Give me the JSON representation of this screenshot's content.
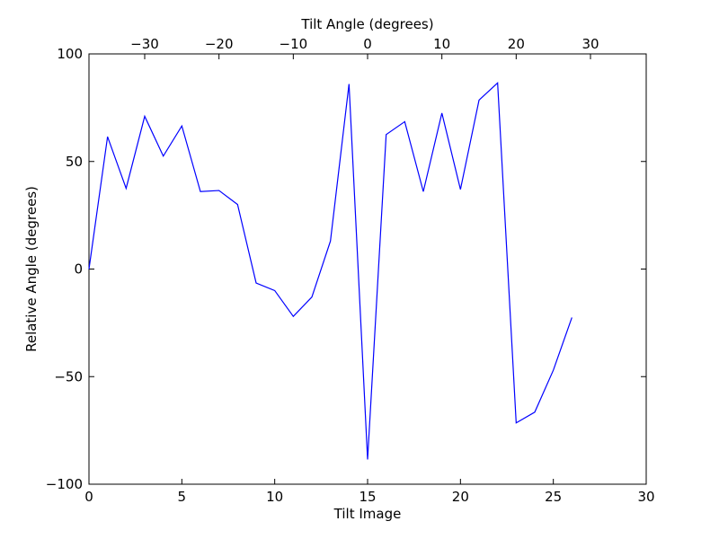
{
  "chart_data": {
    "type": "line",
    "xlabel": "Tilt Image",
    "ylabel": "Relative Angle (degrees)",
    "top_xlabel": "Tilt Angle (degrees)",
    "xlim": [
      0,
      30
    ],
    "ylim": [
      -100,
      100
    ],
    "grid": false,
    "x_ticks": [
      0,
      5,
      10,
      15,
      20,
      25,
      30
    ],
    "x_tick_labels": [
      "0",
      "5",
      "10",
      "15",
      "20",
      "25",
      "30"
    ],
    "y_ticks": [
      -100,
      -50,
      0,
      50,
      100
    ],
    "y_tick_labels": [
      "−100",
      "−50",
      "0",
      "50",
      "100"
    ],
    "top_ticks": [
      -30,
      -20,
      -10,
      0,
      10,
      20,
      30
    ],
    "top_tick_labels": [
      "−30",
      "−20",
      "−10",
      "0",
      "10",
      "20",
      "30"
    ],
    "top_axis_map": {
      "tilt_image_at_zero_degrees": 15,
      "degrees_per_tilt_image": 2.5
    },
    "series": [
      {
        "color": "#0000ff",
        "x": [
          0,
          1,
          2,
          3,
          4,
          5,
          6,
          7,
          8,
          9,
          10,
          11,
          12,
          13,
          14,
          15,
          16,
          17,
          18,
          19,
          20,
          21,
          22,
          23,
          24,
          25,
          26
        ],
        "y": [
          0,
          61.5,
          37.5,
          71,
          52.5,
          66.5,
          36,
          36.5,
          30,
          -6.5,
          -10,
          -22,
          -13,
          13,
          86,
          -88.5,
          62.5,
          68.5,
          36,
          72.5,
          37,
          78.5,
          86.5,
          -71.5,
          -66.5,
          -47,
          -22.5
        ]
      }
    ]
  }
}
